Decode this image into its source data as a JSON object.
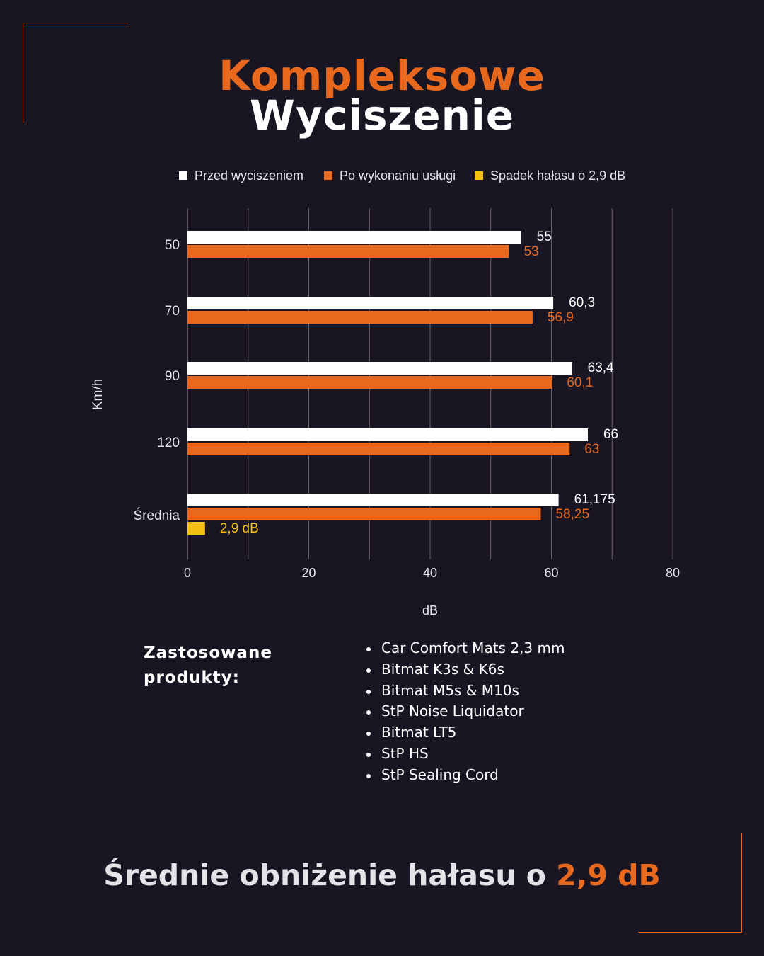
{
  "title": {
    "line1": "Kompleksowe",
    "line2": "Wyciszenie"
  },
  "colors": {
    "background": "#1a1523",
    "accent": "#e8681e",
    "before": "#ffffff",
    "after": "#e8681e",
    "drop": "#f5c014",
    "grid": "#6a6470"
  },
  "chart_data": {
    "type": "bar",
    "orientation": "horizontal",
    "categories": [
      "50",
      "70",
      "90",
      "120",
      "Średnia"
    ],
    "series": [
      {
        "name": "Przed wyciszeniem",
        "color": "#ffffff",
        "values": [
          55,
          60.3,
          63.4,
          66,
          61.175
        ],
        "labels": [
          "55",
          "60,3",
          "63,4",
          "66",
          "61,175"
        ]
      },
      {
        "name": "Po wykonaniu usługi",
        "color": "#e8681e",
        "values": [
          53,
          56.9,
          60.1,
          63,
          58.25
        ],
        "labels": [
          "53",
          "56,9",
          "60,1",
          "63",
          "58,25"
        ]
      },
      {
        "name": "Spadek hałasu o 2,9 dB",
        "color": "#f5c014",
        "values": [
          null,
          null,
          null,
          null,
          2.9
        ],
        "labels": [
          "",
          "",
          "",
          "",
          "2,9 dB"
        ]
      }
    ],
    "xlabel": "dB",
    "ylabel": "Km/h",
    "xlim": [
      0,
      80
    ],
    "xticks": [
      0,
      20,
      40,
      60,
      80
    ],
    "grid": true,
    "legend": "top"
  },
  "products": {
    "heading_line1": "Zastosowane",
    "heading_line2": "produkty:",
    "items": [
      "Car Comfort Mats 2,3 mm",
      "Bitmat K3s & K6s",
      "Bitmat M5s & M10s",
      "StP Noise Liquidator",
      "Bitmat LT5",
      "StP HS",
      "StP Sealing Cord"
    ]
  },
  "footer": {
    "text": "Średnie obniżenie hałasu o ",
    "highlight": "2,9 dB"
  }
}
